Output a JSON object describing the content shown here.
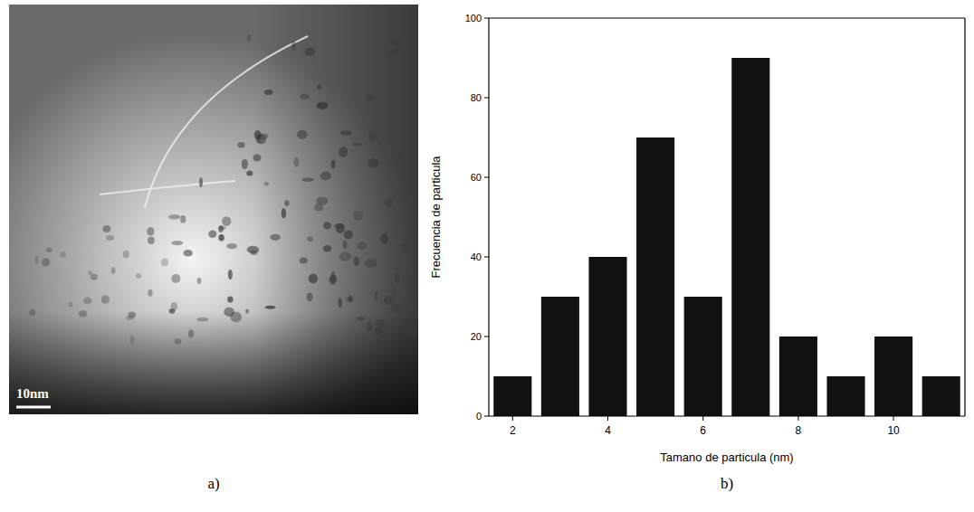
{
  "image_panel": {
    "label": "a)",
    "scale_bar": "10nm"
  },
  "chart_data": {
    "type": "bar",
    "panel_label": "b)",
    "x_label": "Tamano de particula (nm)",
    "y_label": "Frecuencia de particula",
    "x": [
      2,
      3,
      4,
      5,
      6,
      7,
      8,
      9,
      10,
      11
    ],
    "values": [
      10,
      30,
      40,
      70,
      30,
      90,
      20,
      10,
      20,
      10
    ],
    "color": "#111111",
    "xlim": [
      1.5,
      11.5
    ],
    "xticks": [
      2,
      4,
      6,
      8,
      10
    ],
    "ylim": [
      0,
      100
    ],
    "yticks": [
      0,
      20,
      40,
      60,
      80,
      100
    ],
    "grid": false
  }
}
